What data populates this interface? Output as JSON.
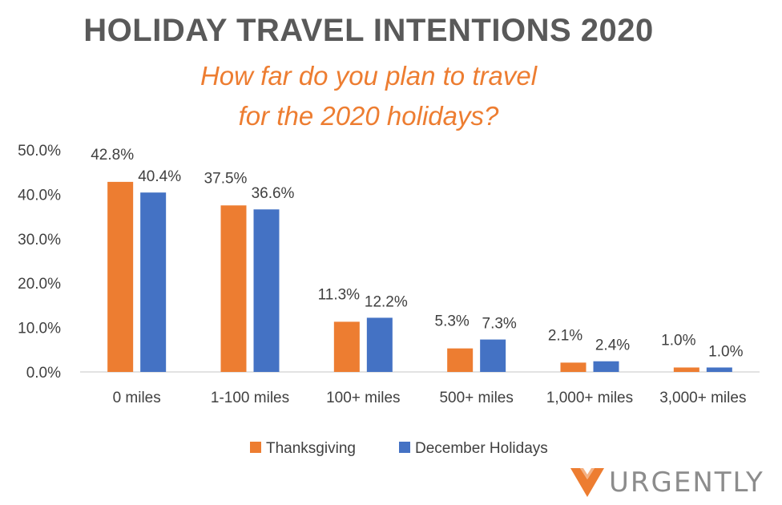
{
  "header": {
    "title": "HOLIDAY TRAVEL INTENTIONS 2020",
    "subtitle_line1": "How far do you plan to travel",
    "subtitle_line2": "for the 2020 holidays?"
  },
  "brand": {
    "name": "URGENTLY",
    "icon": "urgently-chevron-logo",
    "color": "#ED7D31"
  },
  "colors": {
    "thanksgiving": "#ED7D31",
    "december": "#4472C4",
    "text": "#404040",
    "axis": "#d9d9d9"
  },
  "chart_data": {
    "type": "bar",
    "title": "HOLIDAY TRAVEL INTENTIONS 2020",
    "subtitle": "How far do you plan to travel for the 2020 holidays?",
    "categories": [
      "0 miles",
      "1-100 miles",
      "100+ miles",
      "500+ miles",
      "1,000+ miles",
      "3,000+ miles"
    ],
    "series": [
      {
        "name": "Thanksgiving",
        "values": [
          42.8,
          37.5,
          11.3,
          5.3,
          2.1,
          1.0
        ],
        "labels": [
          "42.8%",
          "37.5%",
          "11.3%",
          "5.3%",
          "2.1%",
          "1.0%"
        ]
      },
      {
        "name": "December Holidays",
        "values": [
          40.4,
          36.6,
          12.2,
          7.3,
          2.4,
          1.0
        ],
        "labels": [
          "40.4%",
          "36.6%",
          "12.2%",
          "7.3%",
          "2.4%",
          "1.0%"
        ]
      }
    ],
    "yticks": [
      "0.0%",
      "10.0%",
      "20.0%",
      "30.0%",
      "40.0%",
      "50.0%"
    ],
    "ylim": [
      0,
      50
    ],
    "grid": false,
    "legend": "bottom"
  }
}
